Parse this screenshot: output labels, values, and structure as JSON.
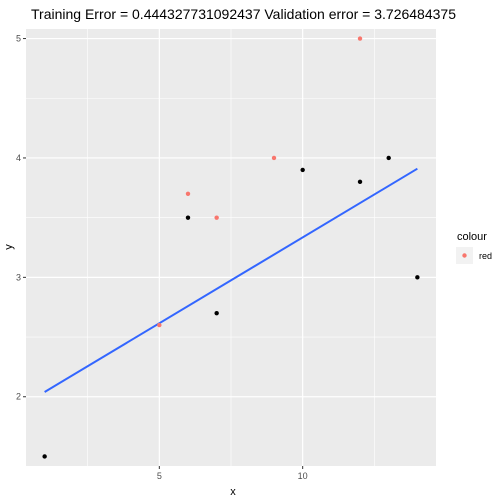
{
  "chart_data": {
    "type": "scatter",
    "title": "Training Error =  0.444327731092437 Validation error =  3.726484375",
    "xlabel": "x",
    "ylabel": "y",
    "xlim": [
      0.35,
      14.65
    ],
    "ylim": [
      1.42,
      5.08
    ],
    "x_ticks": [
      5,
      10
    ],
    "x_tick_labels": [
      "5",
      "10"
    ],
    "x_minor_ticks": [
      2.5,
      7.5,
      12.5
    ],
    "y_ticks": [
      2,
      3,
      4,
      5
    ],
    "y_tick_labels": [
      "2",
      "3",
      "4",
      "5"
    ],
    "y_minor_ticks": [
      2.5,
      3.5,
      4.5
    ],
    "grid": true,
    "legend": {
      "title": "colour",
      "placement": "right",
      "entries": [
        {
          "label": "red",
          "color": "#F8766D"
        }
      ]
    },
    "series": [
      {
        "color": "#000000",
        "points": [
          [
            1,
            1.5
          ],
          [
            6,
            3.5
          ],
          [
            7,
            2.7
          ],
          [
            10,
            3.9
          ],
          [
            12,
            3.8
          ],
          [
            13,
            4.0
          ],
          [
            14,
            3.0
          ]
        ]
      },
      {
        "name": "red",
        "color": "#F8766D",
        "points": [
          [
            5,
            2.6
          ],
          [
            6,
            3.7
          ],
          [
            7,
            3.5
          ],
          [
            9,
            4.0
          ],
          [
            12,
            5.0
          ]
        ]
      }
    ],
    "fit_line": {
      "color": "#3366FF",
      "x": [
        1,
        14
      ],
      "y": [
        2.04,
        3.91
      ]
    }
  }
}
